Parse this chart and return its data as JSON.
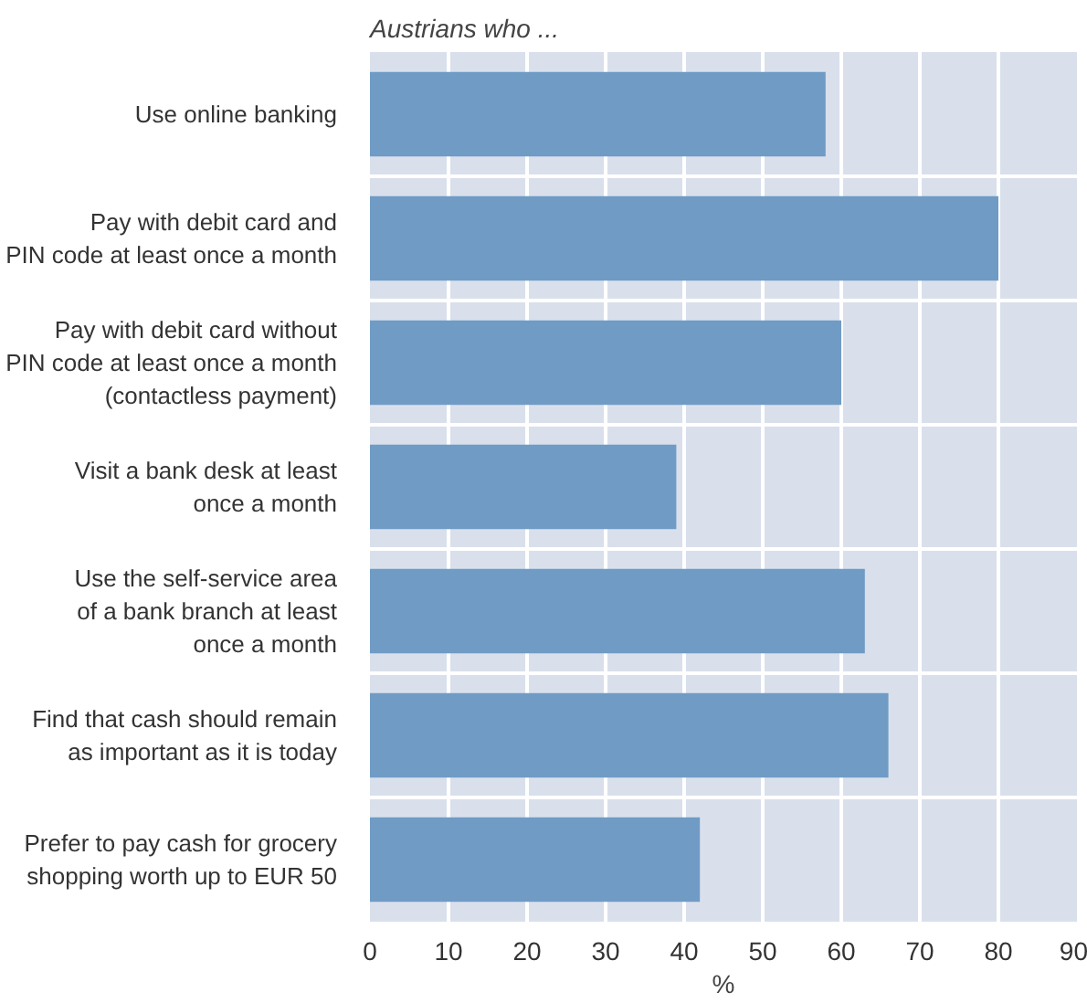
{
  "chart_data": {
    "type": "bar",
    "orientation": "horizontal",
    "title": "Austrians who ...",
    "xlabel": "%",
    "categories": [
      "Use online banking",
      "Pay with debit card and\nPIN code at least once a month",
      "Pay with debit card without\nPIN code at least once a month\n(contactless payment)",
      "Visit a bank desk at least\nonce a month",
      "Use the self-service area\nof a bank branch at least\nonce a month",
      "Find that cash should remain\nas important as it is today",
      "Prefer to pay cash for grocery\nshopping worth up to EUR 50"
    ],
    "values": [
      58,
      80,
      60,
      39,
      63,
      66,
      42
    ],
    "color": "#6f9bc5",
    "xlim": [
      0,
      90
    ],
    "xticks": [
      0,
      10,
      20,
      30,
      40,
      50,
      60,
      70,
      80,
      90
    ],
    "grid": true
  }
}
